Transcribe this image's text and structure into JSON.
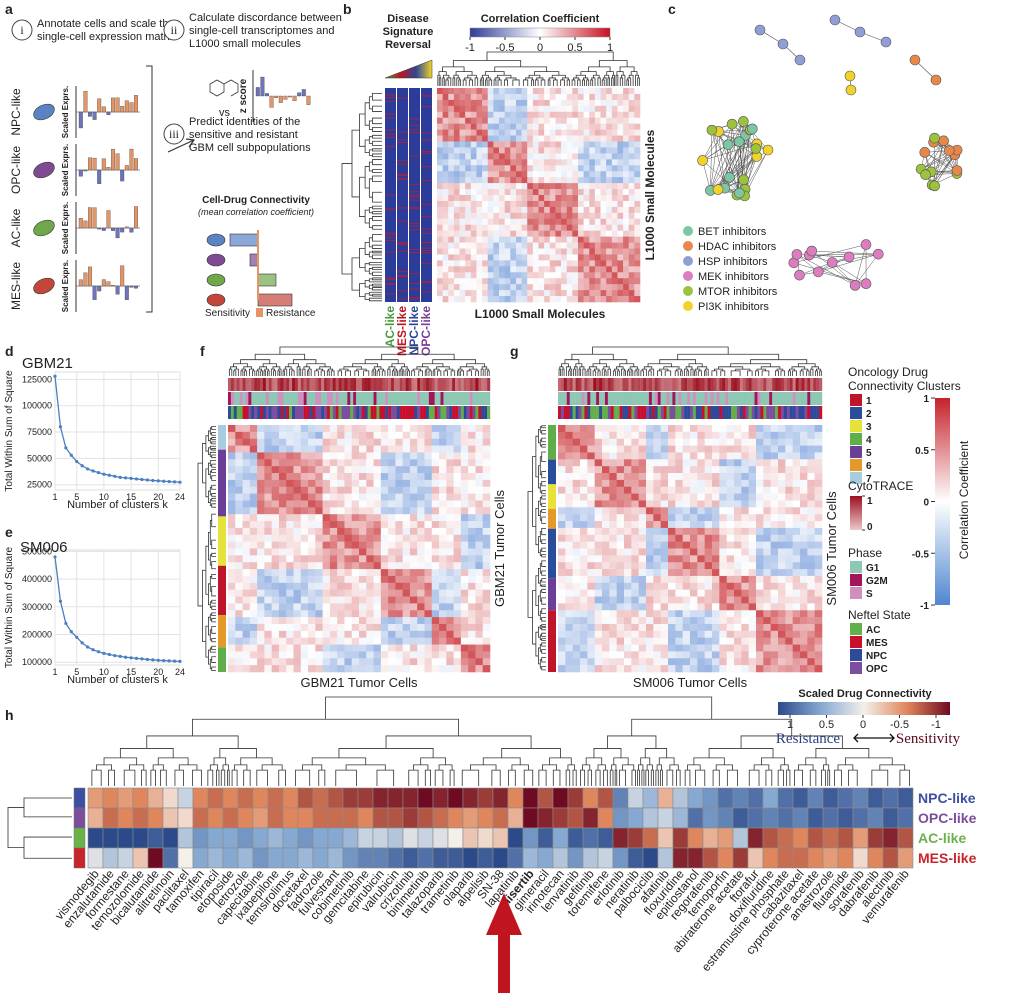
{
  "panel_labels": [
    "a",
    "b",
    "c",
    "d",
    "e",
    "f",
    "g",
    "h"
  ],
  "a": {
    "steps": [
      {
        "numeral": "i",
        "lines": [
          "Annotate cells and scale the",
          "single-cell expression matrix"
        ]
      },
      {
        "numeral": "ii",
        "lines": [
          "Calculate discordance between",
          "single-cell transcriptomes and",
          "L1000 small molecules"
        ]
      },
      {
        "numeral": "iii",
        "lines": [
          "Predict identities of the",
          "sensitive and resistant",
          "GBM cell subpopulations"
        ]
      }
    ],
    "cell_types": [
      "NPC-like",
      "OPC-like",
      "AC-like",
      "MES-like"
    ],
    "axis_label": "Scaled Exprs.",
    "vs": "vs",
    "z_score": "z score",
    "connectivity_title": "Cell-Drug Connectivity",
    "connectivity_subtitle": "(mean correlation coefficient)",
    "sensitivity": "Sensitivity",
    "resistance": "Resistance"
  },
  "b": {
    "title_lines": [
      "Disease",
      "Signature",
      "Reversal"
    ],
    "colorbar_title": "Correlation Coefficient",
    "colorbar_ticks": [
      -1,
      -0.5,
      0,
      0.5,
      1
    ],
    "axis_label": "L1000 Small Molecules",
    "column_labels": [
      "AC-like",
      "MES-like",
      "NPC-like",
      "OPC-like"
    ],
    "column_colors": [
      "#4b9b3a",
      "#c0141e",
      "#2e4597",
      "#7b3f98"
    ]
  },
  "c": {
    "legend": [
      {
        "name": "BET inhibitors",
        "color": "#7cc6a2"
      },
      {
        "name": "HDAC inhibitors",
        "color": "#e8874a"
      },
      {
        "name": "HSP inhibitors",
        "color": "#8f9fd6"
      },
      {
        "name": "MEK inhibitors",
        "color": "#de7cc0"
      },
      {
        "name": "MTOR inhibitors",
        "color": "#9cc23e"
      },
      {
        "name": "PI3K inhibitors",
        "color": "#f2d22a"
      }
    ]
  },
  "chart_data": [
    {
      "type": "line",
      "title": "GBM21",
      "x_label": "Number of clusters k",
      "y_label": "Total Within Sum of Square",
      "x": [
        1,
        2,
        3,
        4,
        5,
        6,
        7,
        8,
        9,
        10,
        11,
        12,
        13,
        14,
        15,
        16,
        17,
        18,
        19,
        20,
        21,
        22,
        23,
        24
      ],
      "values": [
        128000,
        80000,
        60000,
        53000,
        47000,
        43000,
        40000,
        38000,
        36500,
        35000,
        34000,
        33000,
        32000,
        31500,
        31000,
        30500,
        30000,
        29500,
        29000,
        28700,
        28300,
        28000,
        27700,
        27400
      ],
      "color": "#4a7fc1",
      "xlim": [
        1,
        24
      ],
      "xticks": [
        1,
        5,
        10,
        15,
        20,
        24
      ],
      "ylim": [
        20000,
        132000
      ],
      "yticks": [
        25000,
        50000,
        75000,
        100000,
        125000
      ],
      "grid": true
    },
    {
      "type": "line",
      "title": "SM006",
      "x_label": "Number of clusters k",
      "y_label": "Total Within Sum of Square",
      "x": [
        1,
        2,
        3,
        4,
        5,
        6,
        7,
        8,
        9,
        10,
        11,
        12,
        13,
        14,
        15,
        16,
        17,
        18,
        19,
        20,
        21,
        22,
        23,
        24
      ],
      "values": [
        480000,
        320000,
        240000,
        210000,
        190000,
        170000,
        155000,
        145000,
        138000,
        132000,
        128000,
        124000,
        121000,
        118000,
        116000,
        114000,
        112000,
        110000,
        108500,
        107000,
        106000,
        105000,
        104000,
        103000
      ],
      "color": "#4a7fc1",
      "xlim": [
        1,
        24
      ],
      "xticks": [
        1,
        5,
        10,
        15,
        20,
        24
      ],
      "ylim": [
        90000,
        505000
      ],
      "yticks": [
        100000,
        200000,
        300000,
        400000,
        500000
      ],
      "grid": true
    }
  ],
  "f": {
    "x_label": "GBM21 Tumor Cells",
    "y_label": "GBM21 Tumor Cells"
  },
  "g": {
    "x_label": "SM006 Tumor Cells",
    "y_label": "SM006 Tumor Cells"
  },
  "legend_fg": {
    "clusters_title_lines": [
      "Oncology Drug",
      "Connectivity Clusters"
    ],
    "clusters": [
      {
        "label": "1",
        "color": "#c0142b"
      },
      {
        "label": "2",
        "color": "#2a4d9c"
      },
      {
        "label": "3",
        "color": "#e6e23a"
      },
      {
        "label": "4",
        "color": "#5fae4a"
      },
      {
        "label": "5",
        "color": "#6b3f98"
      },
      {
        "label": "6",
        "color": "#e39a2a"
      },
      {
        "label": "7",
        "color": "#a9cbe0"
      }
    ],
    "cytotrace_title": "CytoTRACE",
    "cytotrace_ticks": [
      1,
      0
    ],
    "phase_title": "Phase",
    "phases": [
      {
        "label": "G1",
        "color": "#8ec7b3"
      },
      {
        "label": "G2M",
        "color": "#a4145a"
      },
      {
        "label": "S",
        "color": "#cf8fc0"
      }
    ],
    "neftel_title": "Neftel State",
    "neftel": [
      {
        "label": "AC",
        "color": "#63b04a"
      },
      {
        "label": "MES",
        "color": "#c8102e"
      },
      {
        "label": "NPC",
        "color": "#2e4a9a"
      },
      {
        "label": "OPC",
        "color": "#7b4ea0"
      }
    ],
    "corr_title": "Correlation Coefficient",
    "corr_ticks": [
      1,
      0.5,
      0,
      -0.5,
      -1
    ]
  },
  "h": {
    "title": "Scaled Drug Connectivity",
    "colorbar_ticks": [
      1,
      0.5,
      0,
      -0.5,
      -1
    ],
    "resistance": "Resistance",
    "sensitivity": "Sensitivity",
    "rows": [
      {
        "name": "NPC-like",
        "color": "#3c4fa0",
        "values": [
          -0.4,
          -0.5,
          -0.4,
          -0.5,
          -0.3,
          -0.1,
          0.2,
          -0.5,
          -0.6,
          -0.5,
          -0.6,
          -0.5,
          -0.6,
          -0.5,
          -0.7,
          -0.6,
          -0.7,
          -0.8,
          -0.8,
          -0.9,
          -0.9,
          -0.9,
          -1,
          -0.9,
          -1,
          -0.9,
          -0.8,
          -0.9,
          -0.5,
          -1,
          -0.7,
          -1,
          -0.8,
          -0.5,
          -0.7,
          0.7,
          0.2,
          0.4,
          -0.3,
          0.3,
          0.5,
          0.6,
          0.8,
          0.7,
          0.8,
          0.5,
          0.8,
          0.9,
          0.7,
          0.9,
          0.8,
          0.7,
          0.9,
          0.8,
          0.9
        ]
      },
      {
        "name": "OPC-like",
        "color": "#7b4e9c",
        "values": [
          -0.3,
          -0.6,
          -0.5,
          -0.6,
          -0.5,
          -0.2,
          -0.1,
          -0.6,
          -0.5,
          -0.6,
          -0.5,
          -0.4,
          -0.6,
          -0.5,
          -0.5,
          -0.6,
          -0.6,
          -0.6,
          -0.5,
          -0.7,
          -0.7,
          -0.8,
          -0.7,
          -0.6,
          -0.5,
          -0.4,
          -0.5,
          -0.6,
          -0.3,
          -1,
          -0.9,
          -0.8,
          -0.7,
          -0.9,
          -0.5,
          0.6,
          0.5,
          0.3,
          0.2,
          0.4,
          0.8,
          0.6,
          0.7,
          0.9,
          0.8,
          0.7,
          0.8,
          0.7,
          0.9,
          0.8,
          0.9,
          0.8,
          0.7,
          0.9,
          0.8
        ]
      },
      {
        "name": "AC-like",
        "color": "#6cb24a",
        "values": [
          1,
          1,
          1,
          1,
          0.9,
          1,
          0.3,
          0.6,
          0.5,
          0.5,
          0.6,
          0.5,
          0.4,
          0.5,
          0.6,
          0.5,
          0.5,
          0.4,
          0.2,
          0.2,
          0.3,
          0.1,
          0.2,
          0.1,
          0,
          -0.2,
          -0.1,
          -0.2,
          1,
          0.6,
          0.9,
          0.5,
          0.9,
          0.8,
          0.9,
          -0.9,
          -0.8,
          -0.6,
          -0.2,
          -0.8,
          -0.5,
          -0.3,
          -0.4,
          0.3,
          -0.9,
          -0.7,
          -0.6,
          -0.5,
          -0.7,
          -0.6,
          -0.7,
          -0.4,
          -0.8,
          -0.9,
          -0.7
        ]
      },
      {
        "name": "MES-like",
        "color": "#c8242b",
        "values": [
          0.1,
          0.3,
          0.2,
          -0.2,
          -1,
          0.8,
          0,
          0.5,
          0.4,
          0.5,
          0.4,
          0.6,
          0.5,
          0.5,
          0.4,
          0.5,
          0.4,
          0.6,
          0.7,
          0.7,
          0.8,
          0.9,
          0.8,
          0.9,
          0.9,
          1,
          0.9,
          1,
          0.8,
          0.4,
          0.5,
          0.3,
          0.6,
          0.3,
          0.2,
          0.6,
          0.9,
          1,
          0.3,
          -0.9,
          -0.9,
          -0.7,
          -0.5,
          -0.8,
          -0.2,
          -0.5,
          -0.6,
          -0.6,
          -0.5,
          -0.4,
          -0.5,
          -0.1,
          -0.5,
          -0.7,
          -0.4
        ]
      }
    ],
    "drugs": [
      "vismodegib",
      "enzalutamide",
      "formestane",
      "temozolomide",
      "bicalutamide",
      "alitretinoin",
      "paclitaxel",
      "tamoxifen",
      "tipiracil",
      "etoposide",
      "letrozole",
      "capecitabine",
      "ixabepilone",
      "temsirolimus",
      "docetaxel",
      "fadrozole",
      "fulvestrant",
      "cobimetinib",
      "gemcitabine",
      "epirubicin",
      "valrubicin",
      "crizotinib",
      "binimetinib",
      "talazoparib",
      "trametinib",
      "olaparib",
      "alpelisib",
      "SN-38",
      "lapatinib",
      "alisertib",
      "gimeracil",
      "irinotecan",
      "lenvatinib",
      "gefitinib",
      "toremifene",
      "erlotinib",
      "neratinib",
      "palbociclib",
      "afatinib",
      "floxuridine",
      "epitiostanol",
      "regorafenib",
      "temoporfin",
      "abiraterone acetate",
      "ftorafur",
      "doxifluridine",
      "estramustine phosphate",
      "cabazitaxel",
      "cyproterone acetate",
      "anastrozole",
      "flutamide",
      "sorafenib",
      "dabrafenib",
      "alectinib",
      "vemurafenib"
    ]
  }
}
